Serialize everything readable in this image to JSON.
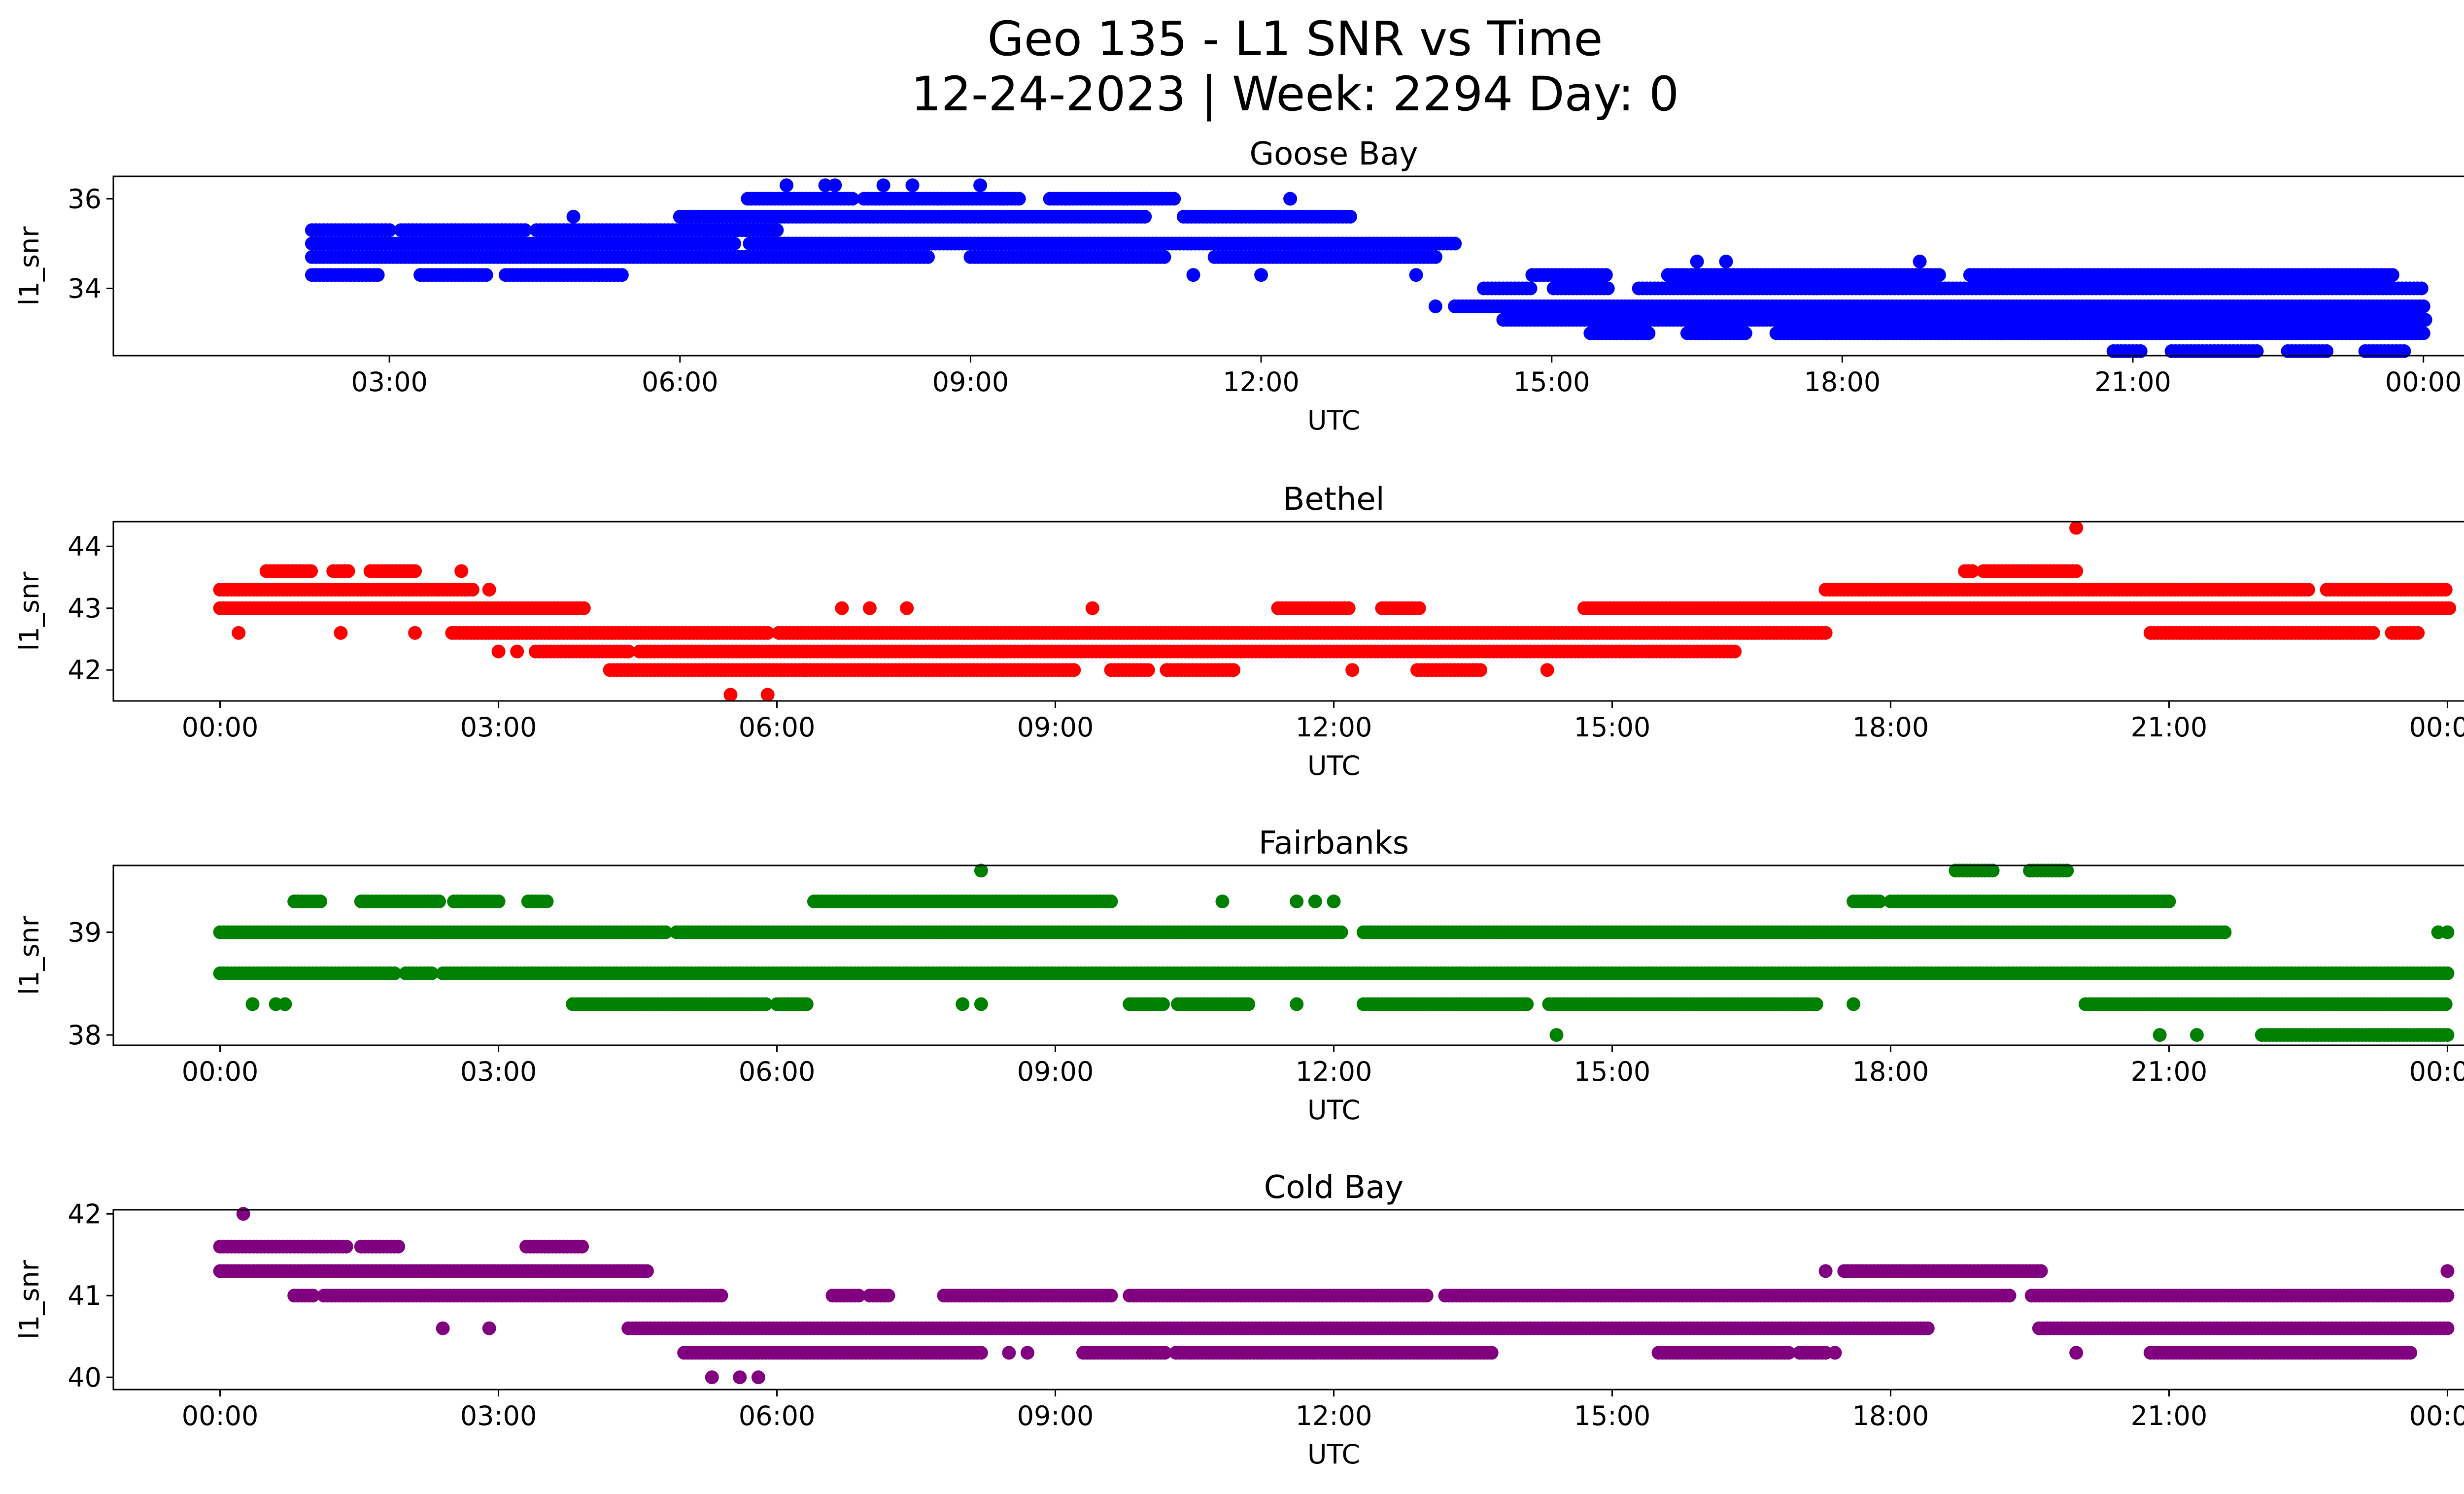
{
  "figure": {
    "title_line1": "Geo 135 - L1 SNR vs Time",
    "title_line2": "12-24-2023 | Week: 2294 Day: 0"
  },
  "chart_data": [
    {
      "type": "scatter",
      "title": "Goose Bay",
      "xlabel": "UTC",
      "ylabel": "l1_snr",
      "color": "#0000ff",
      "xlim_hours": [
        0.15,
        25.35
      ],
      "ylim": [
        32.5,
        36.5
      ],
      "xticks": [
        {
          "h": 3,
          "label": "03:00"
        },
        {
          "h": 6,
          "label": "06:00"
        },
        {
          "h": 9,
          "label": "09:00"
        },
        {
          "h": 12,
          "label": "12:00"
        },
        {
          "h": 15,
          "label": "15:00"
        },
        {
          "h": 18,
          "label": "18:00"
        },
        {
          "h": 21,
          "label": "21:00"
        },
        {
          "h": 24,
          "label": "00:00"
        }
      ],
      "yticks": [
        {
          "v": 34,
          "label": "34"
        },
        {
          "v": 36,
          "label": "36"
        }
      ],
      "levels": [
        {
          "y": 35.3,
          "x": [
            2.2,
            7.0
          ],
          "gaps": [
            [
              3.0,
              3.1
            ],
            [
              4.4,
              4.5
            ]
          ]
        },
        {
          "y": 35.0,
          "x": [
            2.2,
            14.0
          ],
          "gaps": [
            [
              6.6,
              6.7
            ]
          ]
        },
        {
          "y": 34.7,
          "x": [
            2.2,
            13.8
          ],
          "gaps": [
            [
              8.6,
              9.0
            ],
            [
              11.0,
              11.5
            ]
          ]
        },
        {
          "y": 34.3,
          "x": [
            2.2,
            5.4
          ],
          "gaps": [
            [
              2.9,
              3.3
            ],
            [
              4.0,
              4.2
            ]
          ]
        },
        {
          "y": 35.6,
          "x": [
            6.0,
            12.9
          ],
          "gaps": [
            [
              10.8,
              11.2
            ]
          ]
        },
        {
          "y": 36.0,
          "x": [
            6.7,
            11.1
          ],
          "gaps": [
            [
              7.8,
              7.9
            ],
            [
              9.5,
              9.8
            ]
          ]
        },
        {
          "y": 34.0,
          "x": [
            14.3,
            24.0
          ],
          "gaps": [
            [
              14.8,
              15.0
            ],
            [
              15.6,
              15.9
            ]
          ]
        },
        {
          "y": 33.6,
          "x": [
            14.0,
            24.0
          ],
          "gaps": []
        },
        {
          "y": 33.3,
          "x": [
            14.5,
            24.0
          ],
          "gaps": []
        },
        {
          "y": 33.0,
          "x": [
            15.4,
            24.0
          ],
          "gaps": [
            [
              16.0,
              16.4
            ],
            [
              17.0,
              17.3
            ]
          ]
        },
        {
          "y": 34.3,
          "x": [
            14.8,
            23.7
          ],
          "gaps": [
            [
              15.6,
              16.2
            ],
            [
              19.0,
              19.3
            ]
          ]
        },
        {
          "y": 32.6,
          "x": [
            20.8,
            23.8
          ],
          "gaps": [
            [
              21.1,
              21.4
            ],
            [
              22.3,
              22.6
            ],
            [
              23.0,
              23.4
            ]
          ]
        }
      ],
      "outliers": [
        [
          7.1,
          36.3
        ],
        [
          7.5,
          36.3
        ],
        [
          7.6,
          36.3
        ],
        [
          8.1,
          36.3
        ],
        [
          8.4,
          36.3
        ],
        [
          9.1,
          36.3
        ],
        [
          4.9,
          35.6
        ],
        [
          12.3,
          36.0
        ],
        [
          13.6,
          34.3
        ],
        [
          13.8,
          33.6
        ],
        [
          14.2,
          33.6
        ],
        [
          16.5,
          34.6
        ],
        [
          16.8,
          34.6
        ],
        [
          18.8,
          34.6
        ],
        [
          12.0,
          34.3
        ],
        [
          11.3,
          34.3
        ]
      ]
    },
    {
      "type": "scatter",
      "title": "Bethel",
      "xlabel": "UTC",
      "ylabel": "l1_snr",
      "color": "#ff0000",
      "xlim_hours": [
        -1.15,
        25.15
      ],
      "ylim": [
        41.5,
        44.4
      ],
      "xticks": [
        {
          "h": 0,
          "label": "00:00"
        },
        {
          "h": 3,
          "label": "03:00"
        },
        {
          "h": 6,
          "label": "06:00"
        },
        {
          "h": 9,
          "label": "09:00"
        },
        {
          "h": 12,
          "label": "12:00"
        },
        {
          "h": 15,
          "label": "15:00"
        },
        {
          "h": 18,
          "label": "18:00"
        },
        {
          "h": 21,
          "label": "21:00"
        },
        {
          "h": 24,
          "label": "00:00"
        }
      ],
      "yticks": [
        {
          "v": 42,
          "label": "42"
        },
        {
          "v": 43,
          "label": "43"
        },
        {
          "v": 44,
          "label": "44"
        }
      ],
      "levels": [
        {
          "y": 43.3,
          "x": [
            0.0,
            2.7
          ],
          "gaps": []
        },
        {
          "y": 43.0,
          "x": [
            0.0,
            3.9
          ],
          "gaps": []
        },
        {
          "y": 43.6,
          "x": [
            0.5,
            2.1
          ],
          "gaps": [
            [
              1.0,
              1.2
            ],
            [
              1.4,
              1.6
            ]
          ]
        },
        {
          "y": 42.6,
          "x": [
            2.5,
            17.3
          ],
          "gaps": [
            [
              5.9,
              6.0
            ]
          ]
        },
        {
          "y": 42.3,
          "x": [
            3.4,
            16.3
          ],
          "gaps": [
            [
              4.4,
              4.5
            ]
          ]
        },
        {
          "y": 42.0,
          "x": [
            4.2,
            10.9
          ],
          "gaps": [
            [
              9.2,
              9.6
            ],
            [
              10.0,
              10.2
            ]
          ]
        },
        {
          "y": 43.0,
          "x": [
            11.4,
            12.9
          ],
          "gaps": [
            [
              12.2,
              12.5
            ]
          ]
        },
        {
          "y": 43.0,
          "x": [
            14.7,
            24.0
          ],
          "gaps": []
        },
        {
          "y": 43.3,
          "x": [
            17.3,
            24.0
          ],
          "gaps": [
            [
              22.5,
              22.7
            ]
          ]
        },
        {
          "y": 43.6,
          "x": [
            18.8,
            20.0
          ],
          "gaps": [
            [
              18.9,
              19.0
            ]
          ]
        },
        {
          "y": 42.6,
          "x": [
            20.8,
            23.7
          ],
          "gaps": [
            [
              23.2,
              23.4
            ]
          ]
        },
        {
          "y": 42.0,
          "x": [
            12.9,
            13.6
          ],
          "gaps": []
        }
      ],
      "outliers": [
        [
          0.2,
          42.6
        ],
        [
          1.3,
          42.6
        ],
        [
          2.1,
          42.6
        ],
        [
          2.6,
          43.6
        ],
        [
          2.9,
          43.3
        ],
        [
          3.0,
          42.3
        ],
        [
          3.2,
          42.3
        ],
        [
          5.5,
          41.6
        ],
        [
          5.9,
          41.6
        ],
        [
          6.7,
          43.0
        ],
        [
          7.0,
          43.0
        ],
        [
          7.4,
          43.0
        ],
        [
          9.4,
          43.0
        ],
        [
          12.2,
          42.0
        ],
        [
          14.3,
          42.0
        ],
        [
          20.0,
          44.3
        ],
        [
          6.3,
          42.0
        ]
      ]
    },
    {
      "type": "scatter",
      "title": "Fairbanks",
      "xlabel": "UTC",
      "ylabel": "l1_snr",
      "color": "#008000",
      "xlim_hours": [
        -1.15,
        25.15
      ],
      "ylim": [
        37.9,
        39.65
      ],
      "xticks": [
        {
          "h": 0,
          "label": "00:00"
        },
        {
          "h": 3,
          "label": "03:00"
        },
        {
          "h": 6,
          "label": "06:00"
        },
        {
          "h": 9,
          "label": "09:00"
        },
        {
          "h": 12,
          "label": "12:00"
        },
        {
          "h": 15,
          "label": "15:00"
        },
        {
          "h": 18,
          "label": "18:00"
        },
        {
          "h": 21,
          "label": "21:00"
        },
        {
          "h": 24,
          "label": "00:00"
        }
      ],
      "yticks": [
        {
          "v": 38,
          "label": "38"
        },
        {
          "v": 39,
          "label": "39"
        }
      ],
      "levels": [
        {
          "y": 39.0,
          "x": [
            0.0,
            21.6
          ],
          "gaps": [
            [
              4.8,
              4.9
            ],
            [
              12.1,
              12.3
            ]
          ]
        },
        {
          "y": 38.6,
          "x": [
            0.0,
            24.0
          ],
          "gaps": [
            [
              1.9,
              2.0
            ],
            [
              2.3,
              2.4
            ]
          ]
        },
        {
          "y": 39.3,
          "x": [
            0.8,
            3.5
          ],
          "gaps": [
            [
              1.1,
              1.5
            ],
            [
              2.4,
              2.5
            ],
            [
              3.0,
              3.3
            ]
          ]
        },
        {
          "y": 39.3,
          "x": [
            6.4,
            9.6
          ],
          "gaps": []
        },
        {
          "y": 38.3,
          "x": [
            3.8,
            6.3
          ],
          "gaps": [
            [
              5.9,
              6.0
            ]
          ]
        },
        {
          "y": 38.3,
          "x": [
            9.8,
            17.2
          ],
          "gaps": [
            [
              10.2,
              10.3
            ],
            [
              11.1,
              12.3
            ],
            [
              14.1,
              14.3
            ]
          ]
        },
        {
          "y": 39.3,
          "x": [
            17.6,
            21.0
          ],
          "gaps": [
            [
              17.9,
              18.0
            ]
          ]
        },
        {
          "y": 38.3,
          "x": [
            20.1,
            24.0
          ],
          "gaps": []
        },
        {
          "y": 38.0,
          "x": [
            22.0,
            24.0
          ],
          "gaps": []
        },
        {
          "y": 39.6,
          "x": [
            18.7,
            19.9
          ],
          "gaps": [
            [
              19.1,
              19.5
            ]
          ]
        }
      ],
      "outliers": [
        [
          0.35,
          38.3
        ],
        [
          0.6,
          38.3
        ],
        [
          0.7,
          38.3
        ],
        [
          8.2,
          39.6
        ],
        [
          8.0,
          38.3
        ],
        [
          8.2,
          38.3
        ],
        [
          10.8,
          39.3
        ],
        [
          11.6,
          39.3
        ],
        [
          11.8,
          39.3
        ],
        [
          12.0,
          39.3
        ],
        [
          14.4,
          38.0
        ],
        [
          17.6,
          38.3
        ],
        [
          20.9,
          38.0
        ],
        [
          21.3,
          38.0
        ],
        [
          23.9,
          39.0
        ],
        [
          24.0,
          39.0
        ],
        [
          11.6,
          38.3
        ]
      ]
    },
    {
      "type": "scatter",
      "title": "Cold Bay",
      "xlabel": "UTC",
      "ylabel": "l1_snr",
      "color": "#800080",
      "xlim_hours": [
        -1.15,
        25.15
      ],
      "ylim": [
        39.85,
        42.05
      ],
      "xticks": [
        {
          "h": 0,
          "label": "00:00"
        },
        {
          "h": 3,
          "label": "03:00"
        },
        {
          "h": 6,
          "label": "06:00"
        },
        {
          "h": 9,
          "label": "09:00"
        },
        {
          "h": 12,
          "label": "12:00"
        },
        {
          "h": 15,
          "label": "15:00"
        },
        {
          "h": 18,
          "label": "18:00"
        },
        {
          "h": 21,
          "label": "21:00"
        },
        {
          "h": 24,
          "label": "00:00"
        }
      ],
      "yticks": [
        {
          "v": 40,
          "label": "40"
        },
        {
          "v": 41,
          "label": "41"
        },
        {
          "v": 42,
          "label": "42"
        }
      ],
      "levels": [
        {
          "y": 41.6,
          "x": [
            0.0,
            1.9
          ],
          "gaps": [
            [
              1.4,
              1.5
            ]
          ]
        },
        {
          "y": 41.3,
          "x": [
            0.0,
            4.6
          ],
          "gaps": []
        },
        {
          "y": 41.0,
          "x": [
            0.8,
            5.4
          ],
          "gaps": [
            [
              1.0,
              1.1
            ]
          ]
        },
        {
          "y": 41.6,
          "x": [
            3.3,
            3.9
          ],
          "gaps": []
        },
        {
          "y": 40.6,
          "x": [
            4.4,
            18.4
          ],
          "gaps": []
        },
        {
          "y": 40.3,
          "x": [
            5.0,
            8.2
          ],
          "gaps": []
        },
        {
          "y": 41.0,
          "x": [
            6.6,
            7.2
          ],
          "gaps": [
            [
              6.9,
              7.0
            ]
          ]
        },
        {
          "y": 41.0,
          "x": [
            7.8,
            24.0
          ],
          "gaps": [
            [
              9.6,
              9.8
            ],
            [
              13.0,
              13.2
            ],
            [
              19.3,
              19.5
            ]
          ]
        },
        {
          "y": 40.3,
          "x": [
            9.3,
            13.7
          ],
          "gaps": [
            [
              10.2,
              10.3
            ]
          ]
        },
        {
          "y": 40.3,
          "x": [
            15.5,
            17.3
          ],
          "gaps": [
            [
              16.9,
              17.0
            ]
          ]
        },
        {
          "y": 41.3,
          "x": [
            17.5,
            19.6
          ],
          "gaps": []
        },
        {
          "y": 40.6,
          "x": [
            19.6,
            24.0
          ],
          "gaps": []
        },
        {
          "y": 40.3,
          "x": [
            20.8,
            23.6
          ],
          "gaps": []
        }
      ],
      "outliers": [
        [
          0.25,
          42.0
        ],
        [
          2.4,
          40.6
        ],
        [
          2.9,
          40.6
        ],
        [
          5.3,
          40.0
        ],
        [
          5.6,
          40.0
        ],
        [
          5.8,
          40.0
        ],
        [
          8.5,
          40.3
        ],
        [
          8.7,
          40.3
        ],
        [
          17.4,
          40.3
        ],
        [
          17.3,
          41.3
        ],
        [
          20.0,
          40.3
        ],
        [
          24.0,
          41.3
        ]
      ]
    }
  ]
}
